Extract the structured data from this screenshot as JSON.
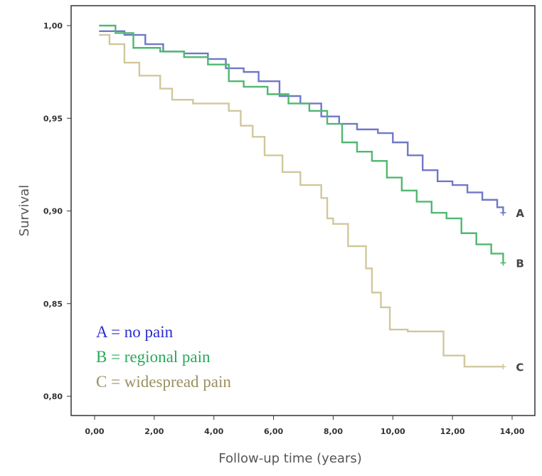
{
  "chart_data": {
    "type": "line",
    "title": "",
    "xlabel": "Follow-up time (years)",
    "ylabel": "Survival",
    "xlim": [
      0,
      14
    ],
    "ylim": [
      0.8,
      1.0
    ],
    "x_ticks": [
      0,
      2,
      4,
      6,
      8,
      10,
      12,
      14
    ],
    "x_tick_labels": [
      "0,00",
      "2,00",
      "4,00",
      "6,00",
      "8,00",
      "10,00",
      "12,00",
      "14,00"
    ],
    "y_ticks": [
      0.8,
      0.85,
      0.9,
      0.95,
      1.0
    ],
    "y_tick_labels": [
      "0,80",
      "0,85",
      "0,90",
      "0,95",
      "1,00"
    ],
    "grid": false,
    "legend_position": "bottom-left",
    "legend": [
      {
        "text": "A = no pain",
        "color": "#2b2bd0"
      },
      {
        "text": "B = regional pain",
        "color": "#2aa85a"
      },
      {
        "text": "C = widespread pain",
        "color": "#9a9060"
      }
    ],
    "series": [
      {
        "label": "A",
        "color": "#7078c8",
        "step": true,
        "x": [
          0.15,
          1.0,
          1.7,
          2.3,
          3.0,
          3.8,
          4.4,
          5.0,
          5.5,
          6.2,
          6.9,
          7.6,
          8.2,
          8.8,
          9.5,
          10.0,
          10.5,
          11.0,
          11.5,
          12.0,
          12.5,
          13.0,
          13.5,
          13.7
        ],
        "y": [
          0.997,
          0.995,
          0.99,
          0.986,
          0.985,
          0.982,
          0.977,
          0.975,
          0.97,
          0.962,
          0.958,
          0.951,
          0.947,
          0.944,
          0.942,
          0.937,
          0.93,
          0.922,
          0.916,
          0.914,
          0.91,
          0.906,
          0.902,
          0.899
        ]
      },
      {
        "label": "B",
        "color": "#50b870",
        "step": true,
        "x": [
          0.15,
          0.7,
          1.3,
          2.2,
          3.0,
          3.8,
          4.5,
          5.0,
          5.8,
          6.5,
          7.2,
          7.8,
          8.3,
          8.8,
          9.3,
          9.8,
          10.3,
          10.8,
          11.3,
          11.8,
          12.3,
          12.8,
          13.3,
          13.7
        ],
        "y": [
          1.0,
          0.996,
          0.988,
          0.986,
          0.983,
          0.979,
          0.97,
          0.967,
          0.963,
          0.958,
          0.954,
          0.947,
          0.937,
          0.932,
          0.927,
          0.918,
          0.911,
          0.905,
          0.899,
          0.896,
          0.888,
          0.882,
          0.877,
          0.872
        ]
      },
      {
        "label": "C",
        "color": "#d0c89c",
        "step": true,
        "x": [
          0.15,
          0.5,
          1.0,
          1.5,
          2.2,
          2.6,
          3.3,
          4.5,
          4.9,
          5.3,
          5.7,
          6.3,
          6.9,
          7.6,
          7.8,
          8.0,
          8.5,
          9.1,
          9.3,
          9.6,
          9.9,
          10.5,
          11.7,
          12.4,
          13.7
        ],
        "y": [
          0.995,
          0.99,
          0.98,
          0.973,
          0.966,
          0.96,
          0.958,
          0.954,
          0.946,
          0.94,
          0.93,
          0.921,
          0.914,
          0.907,
          0.896,
          0.893,
          0.881,
          0.869,
          0.856,
          0.848,
          0.836,
          0.835,
          0.822,
          0.816,
          0.816
        ]
      }
    ]
  }
}
